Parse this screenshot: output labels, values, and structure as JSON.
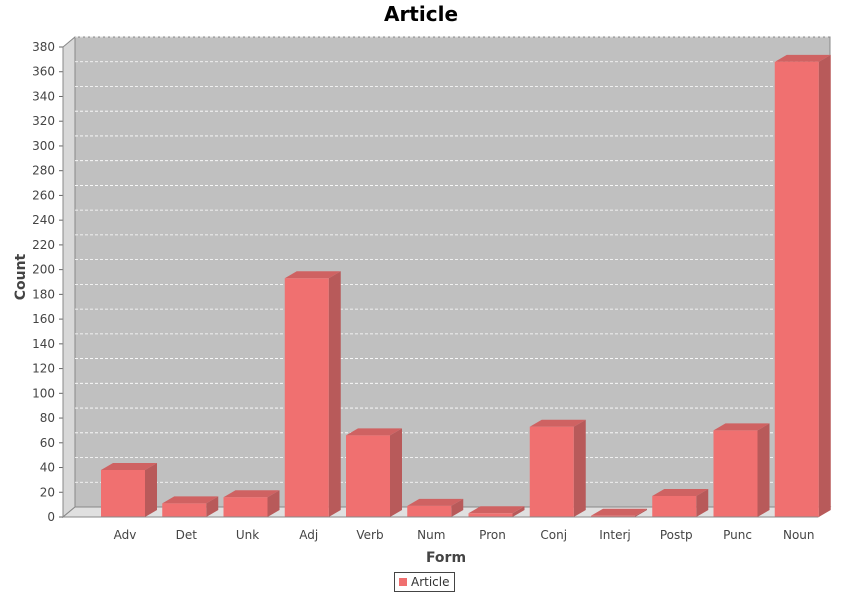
{
  "chart_data": {
    "type": "bar",
    "title": "Article",
    "xlabel": "Form",
    "ylabel": "Count",
    "ylim": [
      0,
      380
    ],
    "ytick_step": 20,
    "grid": true,
    "legend_position": "bottom-center",
    "categories": [
      "Adv",
      "Det",
      "Unk",
      "Adj",
      "Verb",
      "Num",
      "Pron",
      "Conj",
      "Interj",
      "Postp",
      "Punc",
      "Noun"
    ],
    "series": [
      {
        "name": "Article",
        "color": "#f07070",
        "values": [
          38,
          11,
          16,
          193,
          66,
          9,
          3,
          73,
          1,
          17,
          70,
          368
        ]
      }
    ]
  },
  "colors": {
    "plot_background": "#c0c0c0",
    "bar_front": "#f07070",
    "bar_side": "#b85a5a",
    "bar_top": "#cf6262"
  }
}
